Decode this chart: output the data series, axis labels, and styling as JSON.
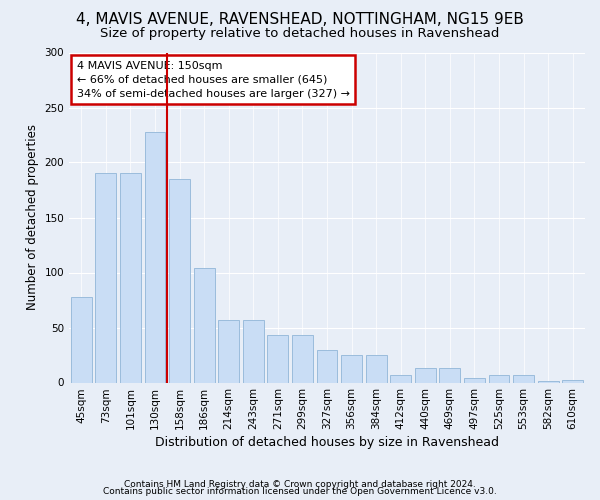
{
  "title1": "4, MAVIS AVENUE, RAVENSHEAD, NOTTINGHAM, NG15 9EB",
  "title2": "Size of property relative to detached houses in Ravenshead",
  "xlabel": "Distribution of detached houses by size in Ravenshead",
  "ylabel": "Number of detached properties",
  "categories": [
    "45sqm",
    "73sqm",
    "101sqm",
    "130sqm",
    "158sqm",
    "186sqm",
    "214sqm",
    "243sqm",
    "271sqm",
    "299sqm",
    "327sqm",
    "356sqm",
    "384sqm",
    "412sqm",
    "440sqm",
    "469sqm",
    "497sqm",
    "525sqm",
    "553sqm",
    "582sqm",
    "610sqm"
  ],
  "values": [
    78,
    190,
    190,
    228,
    185,
    104,
    57,
    57,
    43,
    43,
    30,
    25,
    25,
    7,
    13,
    13,
    4,
    7,
    7,
    1,
    2
  ],
  "bar_color": "#c9ddf5",
  "bar_edge_color": "#9bbcdc",
  "vline_color": "#cc0000",
  "annotation_text": "4 MAVIS AVENUE: 150sqm\n← 66% of detached houses are smaller (645)\n34% of semi-detached houses are larger (327) →",
  "annotation_box_facecolor": "#ffffff",
  "annotation_box_edgecolor": "#cc0000",
  "ylim": [
    0,
    300
  ],
  "yticks": [
    0,
    50,
    100,
    150,
    200,
    250,
    300
  ],
  "bg_color": "#e8eef7",
  "grid_color": "#ffffff",
  "footer1": "Contains HM Land Registry data © Crown copyright and database right 2024.",
  "footer2": "Contains public sector information licensed under the Open Government Licence v3.0.",
  "title1_fontsize": 11,
  "title2_fontsize": 9.5,
  "xlabel_fontsize": 9,
  "ylabel_fontsize": 8.5,
  "tick_fontsize": 7.5,
  "annot_fontsize": 8,
  "footer_fontsize": 6.5
}
